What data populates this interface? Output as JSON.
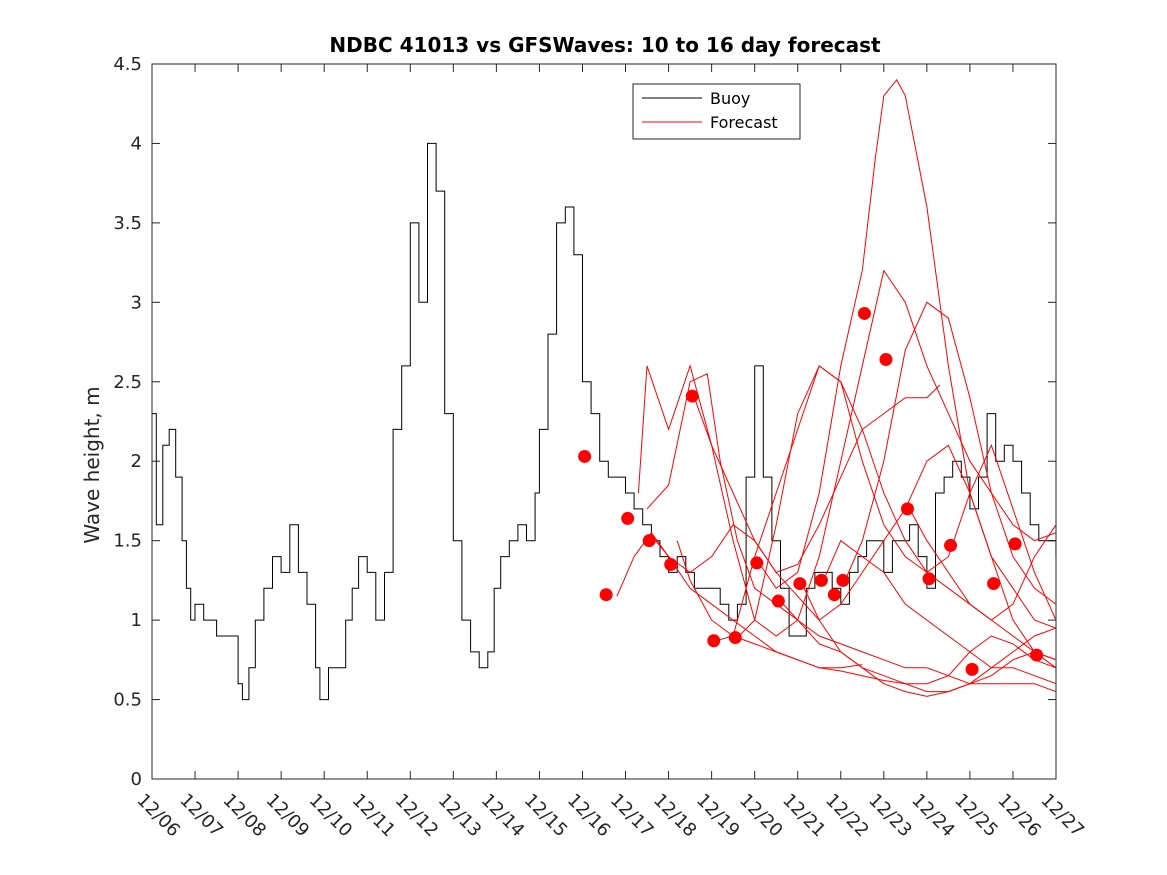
{
  "chart_data": {
    "type": "line",
    "title": "NDBC 41013 vs GFSWaves: 10 to 16 day forecast",
    "xlabel": "",
    "ylabel": "Wave height, m",
    "xlim": [
      0,
      21
    ],
    "ylim": [
      0,
      4.5
    ],
    "xtick_labels": [
      "12/06",
      "12/07",
      "12/08",
      "12/09",
      "12/10",
      "12/11",
      "12/12",
      "12/13",
      "12/14",
      "12/15",
      "12/16",
      "12/17",
      "12/18",
      "12/19",
      "12/20",
      "12/21",
      "12/22",
      "12/23",
      "12/24",
      "12/25",
      "12/26",
      "12/27"
    ],
    "ytick_labels": [
      "0",
      "0.5",
      "1",
      "1.5",
      "2",
      "2.5",
      "3",
      "3.5",
      "4",
      "4.5"
    ],
    "legend": {
      "position": "top-center",
      "entries": [
        "Buoy",
        "Forecast"
      ]
    },
    "colors": {
      "buoy": "#000000",
      "forecast": "#ff0000"
    },
    "series": [
      {
        "name": "Buoy",
        "x": [
          0,
          0.1,
          0.25,
          0.4,
          0.55,
          0.7,
          0.8,
          0.9,
          1.0,
          1.2,
          1.5,
          1.8,
          2.0,
          2.1,
          2.25,
          2.4,
          2.6,
          2.8,
          3.0,
          3.2,
          3.4,
          3.6,
          3.8,
          3.9,
          4.1,
          4.3,
          4.5,
          4.65,
          4.8,
          5.0,
          5.2,
          5.4,
          5.6,
          5.8,
          6.0,
          6.2,
          6.4,
          6.6,
          6.8,
          7.0,
          7.2,
          7.4,
          7.6,
          7.8,
          7.95,
          8.1,
          8.3,
          8.5,
          8.7,
          8.9,
          9.0,
          9.2,
          9.4,
          9.6,
          9.8,
          10.0,
          10.2,
          10.4,
          10.6,
          10.8,
          11.0,
          11.2,
          11.4,
          11.6,
          11.8,
          12.0,
          12.2,
          12.4,
          12.6,
          12.8,
          13.0,
          13.2,
          13.4,
          13.6,
          13.8,
          14.0,
          14.2,
          14.4,
          14.6,
          14.8,
          15.0,
          15.2,
          15.4,
          15.6,
          15.8,
          16.0,
          16.2,
          16.4,
          16.6,
          16.8,
          17.0,
          17.2,
          17.4,
          17.6,
          17.8,
          18.0,
          18.2,
          18.4,
          18.6,
          18.8,
          19.0,
          19.2,
          19.4,
          19.6,
          19.8,
          20.0,
          20.2,
          20.4,
          20.6,
          20.8,
          21.0
        ],
        "values": [
          2.3,
          1.6,
          2.1,
          2.2,
          1.9,
          1.5,
          1.2,
          1.0,
          1.1,
          1.0,
          0.9,
          0.9,
          0.6,
          0.5,
          0.7,
          1.0,
          1.2,
          1.4,
          1.3,
          1.6,
          1.3,
          1.1,
          0.7,
          0.5,
          0.7,
          0.7,
          1.0,
          1.2,
          1.4,
          1.3,
          1.0,
          1.3,
          2.2,
          2.6,
          3.5,
          3.0,
          4.0,
          3.7,
          2.3,
          1.5,
          1.0,
          0.8,
          0.7,
          0.8,
          1.2,
          1.4,
          1.5,
          1.6,
          1.5,
          1.8,
          2.2,
          2.8,
          3.5,
          3.6,
          3.3,
          2.5,
          2.3,
          2.0,
          1.9,
          1.9,
          1.8,
          1.7,
          1.6,
          1.5,
          1.4,
          1.3,
          1.4,
          1.3,
          1.2,
          1.2,
          1.2,
          1.1,
          1.0,
          1.1,
          1.9,
          2.6,
          1.9,
          1.5,
          1.2,
          0.9,
          0.9,
          1.2,
          1.3,
          1.3,
          1.2,
          1.1,
          1.3,
          1.4,
          1.5,
          1.5,
          1.3,
          1.5,
          1.5,
          1.6,
          1.4,
          1.2,
          1.8,
          1.9,
          2.0,
          1.9,
          1.7,
          1.9,
          2.3,
          2.0,
          2.1,
          2.0,
          1.8,
          1.6,
          1.5,
          1.5,
          1.4
        ]
      },
      {
        "name": "Forecast",
        "x": [
          10.8,
          11.2,
          11.6,
          12.0,
          12.5,
          13.0,
          13.5,
          14.0,
          14.5,
          15.0,
          15.5,
          16.0,
          16.5
        ],
        "values": [
          1.15,
          1.4,
          1.55,
          1.4,
          1.2,
          1.1,
          1.0,
          0.9,
          0.8,
          0.75,
          0.7,
          0.7,
          0.72
        ]
      },
      {
        "name": "Forecast",
        "x": [
          11.3,
          11.5,
          12.0,
          12.5,
          13.0,
          13.5,
          14.0,
          14.5,
          15.0,
          15.5,
          16.0,
          16.5,
          17.0,
          17.5,
          18.0,
          18.3
        ],
        "values": [
          1.8,
          2.6,
          2.2,
          2.6,
          2.1,
          1.8,
          1.5,
          1.3,
          1.35,
          1.6,
          1.9,
          2.2,
          2.3,
          2.4,
          2.4,
          2.48
        ]
      },
      {
        "name": "Forecast",
        "x": [
          11.5,
          12.0,
          12.5,
          12.9,
          13.2,
          13.6,
          14.0,
          14.5,
          15.0,
          15.5,
          16.0,
          16.5,
          17.0,
          17.5,
          18.0,
          18.5,
          19.0,
          19.5,
          20.0,
          20.5,
          21.0
        ],
        "values": [
          1.7,
          1.85,
          2.5,
          2.55,
          2.0,
          1.5,
          1.2,
          1.1,
          1.0,
          0.85,
          0.8,
          0.7,
          0.65,
          0.6,
          0.55,
          0.55,
          0.6,
          0.6,
          0.6,
          0.6,
          0.55
        ]
      },
      {
        "name": "Forecast",
        "x": [
          11.7,
          12.0,
          12.5,
          13.0,
          13.5,
          14.0,
          14.5,
          15.0,
          15.5,
          16.0,
          16.5,
          17.0,
          17.5,
          18.0,
          18.5,
          19.0,
          19.5,
          20.0,
          20.5,
          21.0
        ],
        "values": [
          1.5,
          1.4,
          1.3,
          1.4,
          1.6,
          1.5,
          1.3,
          1.15,
          1.0,
          1.1,
          1.3,
          1.5,
          1.7,
          2.0,
          2.1,
          1.8,
          1.4,
          1.0,
          0.8,
          0.7
        ]
      },
      {
        "name": "Forecast",
        "x": [
          12.2,
          12.5,
          13.0,
          13.5,
          14.0,
          14.5,
          15.0,
          15.5,
          16.0,
          16.5,
          17.0,
          17.5,
          18.0,
          18.5,
          19.0,
          19.5,
          20.0,
          20.5,
          21.0
        ],
        "values": [
          1.5,
          1.25,
          1.0,
          0.9,
          0.85,
          0.8,
          0.75,
          0.7,
          0.68,
          0.65,
          0.62,
          0.6,
          0.6,
          0.65,
          0.8,
          0.9,
          0.85,
          0.75,
          0.7
        ]
      },
      {
        "name": "Forecast",
        "x": [
          12.6,
          13.0,
          13.5,
          14.0,
          14.5,
          15.0,
          15.5,
          16.0,
          16.5,
          17.0,
          17.5,
          18.0,
          18.5,
          19.0,
          19.5,
          20.0,
          20.5,
          21.0
        ],
        "values": [
          2.4,
          2.1,
          1.5,
          1.0,
          0.9,
          1.0,
          1.4,
          2.0,
          2.6,
          3.2,
          3.0,
          2.6,
          2.3,
          2.0,
          1.8,
          1.6,
          1.5,
          1.55
        ]
      },
      {
        "name": "Forecast",
        "x": [
          13.1,
          13.5,
          14.0,
          14.5,
          15.0,
          15.5,
          16.0,
          16.5,
          17.0,
          17.5,
          18.0,
          18.5,
          19.0,
          19.5,
          20.0,
          20.5,
          21.0
        ],
        "values": [
          0.87,
          0.9,
          1.4,
          1.8,
          2.2,
          2.6,
          2.5,
          2.2,
          1.8,
          1.5,
          1.3,
          1.4,
          1.8,
          2.1,
          1.7,
          1.3,
          1.0
        ]
      },
      {
        "name": "Forecast",
        "x": [
          13.6,
          14.0,
          14.5,
          15.0,
          15.5,
          16.0,
          16.5,
          17.0,
          17.5,
          18.0,
          18.5,
          19.0,
          19.5,
          20.0,
          20.5,
          21.0
        ],
        "values": [
          0.89,
          1.0,
          1.6,
          2.3,
          2.6,
          2.5,
          2.0,
          1.6,
          1.4,
          1.3,
          1.2,
          1.1,
          1.0,
          0.9,
          0.8,
          0.75
        ]
      },
      {
        "name": "Forecast",
        "x": [
          14.1,
          14.5,
          15.0,
          15.5,
          16.0,
          16.5,
          16.8,
          17.0,
          17.3,
          17.5,
          18.0,
          18.5,
          19.0,
          19.5,
          20.0,
          20.5,
          21.0
        ],
        "values": [
          1.36,
          1.2,
          1.3,
          1.8,
          2.6,
          3.2,
          3.9,
          4.3,
          4.4,
          4.3,
          3.6,
          2.6,
          1.8,
          1.4,
          1.2,
          1.0,
          0.95
        ]
      },
      {
        "name": "Forecast",
        "x": [
          14.6,
          15.0,
          15.5,
          16.0,
          16.5,
          17.0,
          17.5,
          18.0,
          18.5,
          19.0,
          19.5,
          20.0,
          20.5,
          21.0
        ],
        "values": [
          1.12,
          1.0,
          0.9,
          0.85,
          0.8,
          0.75,
          0.7,
          0.7,
          0.65,
          0.6,
          0.65,
          0.75,
          0.8,
          0.75
        ]
      },
      {
        "name": "Forecast",
        "x": [
          15.1,
          15.5,
          16.0,
          16.5,
          17.0,
          17.5,
          18.0,
          18.5,
          19.0,
          19.5,
          20.0,
          20.5,
          21.0
        ],
        "values": [
          1.23,
          1.0,
          0.8,
          0.7,
          0.6,
          0.55,
          0.52,
          0.55,
          0.6,
          0.7,
          0.8,
          0.9,
          0.95
        ]
      },
      {
        "name": "Forecast",
        "x": [
          15.6,
          16.0,
          16.5,
          17.0,
          17.5,
          18.0,
          18.5,
          19.0,
          19.5,
          20.0,
          20.5,
          21.0
        ],
        "values": [
          1.25,
          1.5,
          1.4,
          1.3,
          1.1,
          1.0,
          0.9,
          0.8,
          0.7,
          0.7,
          0.65,
          0.6
        ]
      },
      {
        "name": "Forecast",
        "x": [
          16.1,
          16.5,
          17.0,
          17.5,
          18.0,
          18.5,
          19.0,
          19.5,
          20.0,
          20.5,
          21.0
        ],
        "values": [
          1.25,
          1.5,
          2.0,
          2.7,
          3.0,
          2.9,
          2.4,
          1.8,
          1.4,
          1.2,
          1.1
        ]
      },
      {
        "name": "Forecast",
        "x": [
          17.6,
          18.0,
          18.5,
          19.0,
          19.5,
          20.0,
          20.5,
          21.0
        ],
        "values": [
          1.7,
          1.5,
          1.3,
          1.1,
          1.0,
          1.1,
          1.4,
          1.6
        ]
      }
    ],
    "forecast_markers": {
      "x": [
        10.05,
        10.55,
        11.05,
        11.55,
        12.05,
        12.55,
        13.05,
        13.55,
        14.05,
        14.55,
        15.05,
        15.55,
        15.85,
        16.05,
        16.55,
        17.05,
        17.55,
        18.05,
        18.55,
        19.05,
        19.55,
        20.05,
        20.55
      ],
      "values": [
        2.03,
        1.16,
        1.64,
        1.5,
        1.35,
        2.41,
        0.87,
        0.89,
        1.36,
        1.12,
        1.23,
        1.25,
        1.16,
        1.25,
        2.93,
        2.64,
        1.7,
        1.26,
        1.47,
        0.69,
        1.23,
        1.48,
        0.78
      ]
    }
  }
}
